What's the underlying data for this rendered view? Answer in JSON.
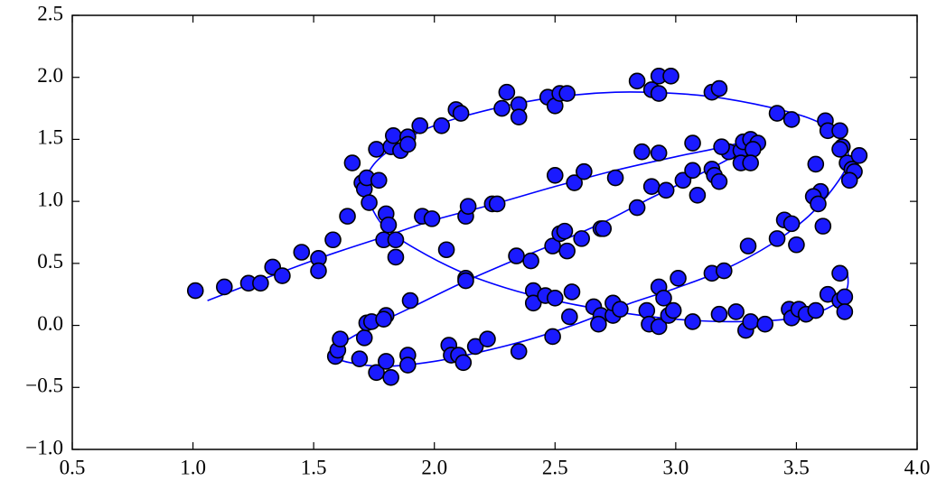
{
  "chart_data": {
    "type": "scatter",
    "xlim": [
      0.5,
      4.0
    ],
    "ylim": [
      -1.0,
      2.5
    ],
    "xticks": [
      0.5,
      {
        "value": 1,
        "label": "1.0"
      },
      1.5,
      {
        "value": 2,
        "label": "2.0"
      },
      2.5,
      {
        "value": 3,
        "label": "3.0"
      },
      3.5,
      {
        "value": 4,
        "label": "4.0"
      }
    ],
    "yticks": [
      {
        "value": -1,
        "label": "−1.0"
      },
      {
        "value": -0.5,
        "label": "−0.5"
      },
      {
        "value": 0,
        "label": "0.0"
      },
      0.5,
      {
        "value": 1,
        "label": "1.0"
      },
      1.5,
      {
        "value": 2,
        "label": "2.0"
      },
      2.5
    ],
    "grid": false,
    "points": {
      "color": "#1a1aff",
      "x": [
        1.01,
        1.13,
        1.23,
        1.28,
        1.33,
        1.37,
        1.45,
        1.52,
        1.52,
        1.58,
        1.64,
        1.66,
        1.7,
        1.71,
        1.72,
        1.73,
        1.76,
        1.77,
        1.8,
        1.81,
        1.79,
        1.84,
        1.84,
        1.82,
        1.83,
        1.86,
        1.89,
        1.89,
        1.94,
        2.03,
        2.09,
        2.11,
        2.28,
        2.3,
        2.35,
        2.35,
        2.47,
        2.5,
        2.52,
        2.55,
        2.84,
        2.9,
        2.93,
        2.98,
        2.93,
        3.15,
        3.18,
        3.42,
        3.48,
        3.62,
        3.63,
        3.68,
        3.69,
        3.68,
        3.71,
        3.73,
        3.76,
        3.74,
        3.72,
        3.58,
        3.6,
        3.57,
        3.59,
        3.61,
        3.45,
        3.42,
        3.48,
        3.5,
        3.3,
        3.15,
        3.2,
        3.01,
        2.93,
        2.95,
        2.88,
        2.89,
        2.93,
        2.97,
        2.99,
        3.07,
        3.18,
        3.25,
        3.29,
        3.31,
        3.37,
        3.47,
        3.48,
        3.51,
        3.54,
        3.58,
        3.63,
        3.68,
        3.7,
        3.68,
        3.7,
        1.59,
        1.6,
        1.61,
        1.71,
        1.69,
        1.72,
        1.74,
        1.8,
        1.79,
        1.76,
        1.8,
        1.82,
        1.89,
        1.89,
        1.9,
        2.06,
        2.07,
        2.1,
        2.12,
        2.17,
        2.22,
        2.35,
        2.49,
        2.41,
        2.41,
        2.46,
        2.5,
        2.56,
        2.57,
        2.66,
        2.69,
        2.68,
        2.74,
        2.74,
        2.77,
        2.13,
        2.13,
        2.34,
        2.4,
        2.49,
        2.52,
        2.54,
        2.55,
        2.61,
        2.69,
        2.7,
        2.84,
        2.9,
        2.96,
        3.03,
        3.09,
        3.07,
        3.15,
        3.16,
        3.18,
        3.22,
        3.19,
        3.27,
        3.28,
        3.27,
        3.31,
        3.34,
        3.32,
        3.31,
        1.95,
        1.99,
        2.05,
        2.13,
        2.14,
        2.24,
        2.26,
        2.5,
        2.58,
        2.62,
        2.75,
        2.86,
        2.93,
        3.07
      ],
      "y": [
        0.28,
        0.31,
        0.34,
        0.34,
        0.47,
        0.4,
        0.59,
        0.54,
        0.44,
        0.69,
        0.88,
        1.31,
        1.15,
        1.1,
        1.19,
        0.99,
        1.42,
        1.17,
        0.9,
        0.81,
        0.69,
        0.69,
        0.55,
        1.44,
        1.53,
        1.41,
        1.52,
        1.46,
        1.61,
        1.61,
        1.74,
        1.71,
        1.75,
        1.88,
        1.78,
        1.68,
        1.84,
        1.77,
        1.87,
        1.87,
        1.97,
        1.9,
        2.01,
        2.01,
        1.87,
        1.88,
        1.91,
        1.71,
        1.66,
        1.65,
        1.57,
        1.57,
        1.44,
        1.42,
        1.31,
        1.26,
        1.37,
        1.24,
        1.17,
        1.3,
        1.08,
        1.04,
        0.98,
        0.8,
        0.85,
        0.7,
        0.82,
        0.65,
        0.64,
        0.42,
        0.44,
        0.38,
        0.31,
        0.22,
        0.12,
        0.01,
        -0.01,
        0.08,
        0.12,
        0.03,
        0.09,
        0.11,
        -0.04,
        0.03,
        0.01,
        0.13,
        0.06,
        0.13,
        0.09,
        0.12,
        0.25,
        0.2,
        0.23,
        0.42,
        0.11,
        -0.25,
        -0.2,
        -0.11,
        -0.1,
        -0.27,
        0.02,
        0.03,
        0.08,
        0.05,
        -0.38,
        -0.29,
        -0.42,
        -0.24,
        -0.32,
        0.2,
        -0.16,
        -0.24,
        -0.24,
        -0.3,
        -0.17,
        -0.11,
        -0.21,
        -0.09,
        0.28,
        0.18,
        0.24,
        0.22,
        0.07,
        0.27,
        0.15,
        0.08,
        0.01,
        0.08,
        0.18,
        0.13,
        0.38,
        0.36,
        0.56,
        0.52,
        0.64,
        0.74,
        0.76,
        0.6,
        0.7,
        0.78,
        0.78,
        0.95,
        1.12,
        1.09,
        1.17,
        1.05,
        1.25,
        1.26,
        1.21,
        1.16,
        1.4,
        1.44,
        1.41,
        1.48,
        1.31,
        1.5,
        1.47,
        1.42,
        1.31,
        0.88,
        0.86,
        0.61,
        0.88,
        0.96,
        0.98,
        0.98,
        1.21,
        1.15,
        1.24,
        1.19,
        1.4,
        1.39,
        1.47
      ]
    },
    "curve": {
      "color": "#0000ff",
      "x": [
        1.06,
        1.3,
        1.55,
        1.8,
        2.0,
        2.25,
        2.5,
        2.75,
        3.0,
        3.2,
        3.33,
        3.3,
        3.1,
        2.9,
        2.7,
        2.5,
        2.3,
        2.1,
        1.9,
        1.75,
        1.63,
        1.58,
        1.65,
        1.8,
        2.0,
        2.2,
        2.4,
        2.6,
        2.8,
        3.0,
        3.2,
        3.4,
        3.55,
        3.65,
        3.71,
        3.7,
        3.6,
        3.45,
        3.2,
        3.0,
        2.75,
        2.5,
        2.25,
        2.0,
        1.85,
        1.75,
        1.71,
        1.74,
        1.8,
        1.92,
        2.1,
        2.3,
        2.5,
        2.75,
        3.0,
        3.25,
        3.5,
        3.65,
        3.71,
        3.71
      ],
      "y": [
        0.2,
        0.38,
        0.56,
        0.72,
        0.85,
        0.98,
        1.12,
        1.25,
        1.36,
        1.44,
        1.5,
        1.43,
        1.22,
        1.03,
        0.83,
        0.66,
        0.5,
        0.33,
        0.14,
        0.0,
        -0.13,
        -0.24,
        -0.3,
        -0.33,
        -0.29,
        -0.21,
        -0.11,
        0.02,
        0.17,
        0.3,
        0.45,
        0.66,
        0.88,
        1.1,
        1.3,
        1.48,
        1.63,
        1.73,
        1.83,
        1.87,
        1.88,
        1.84,
        1.75,
        1.61,
        1.46,
        1.3,
        1.12,
        0.95,
        0.78,
        0.62,
        0.44,
        0.3,
        0.2,
        0.11,
        0.05,
        0.03,
        0.06,
        0.16,
        0.3,
        0.45
      ]
    }
  }
}
